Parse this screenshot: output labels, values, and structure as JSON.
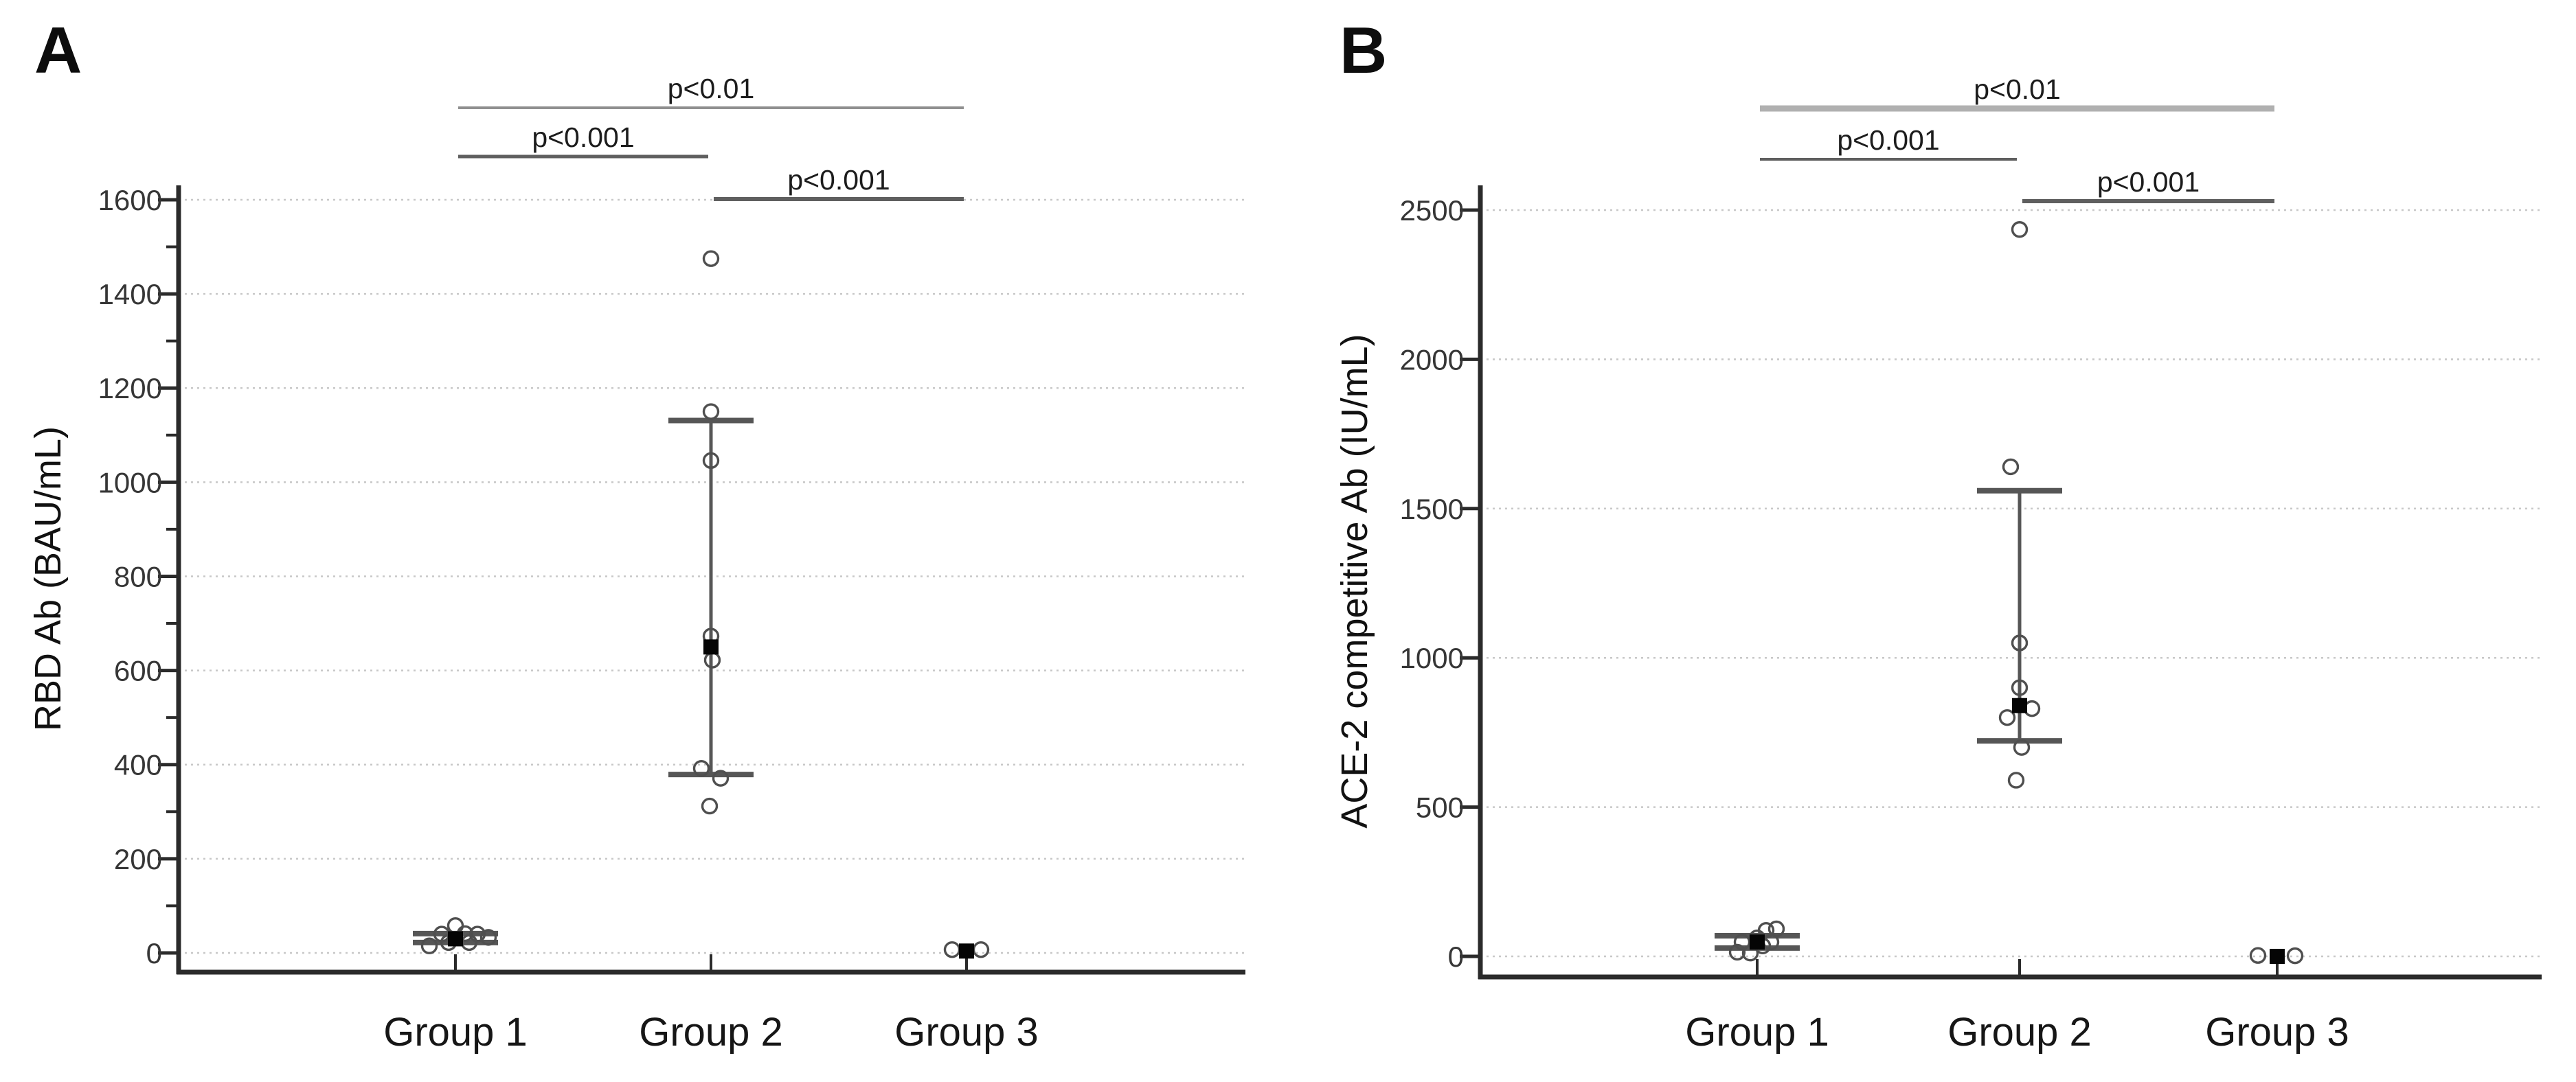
{
  "figure": {
    "background": "#ffffff",
    "text_color": "#1a1a1a",
    "axis_color": "#2b2b2b",
    "grid_color": "#c8c8c8",
    "errorbar_color": "#565656",
    "point_stroke_color": "#4f4f4f",
    "mean_square_color": "#050505"
  },
  "chart_data": [
    {
      "type": "scatter",
      "panel_label": "A",
      "title": "",
      "xlabel": "",
      "ylabel": "RBD Ab (BAU/mL)",
      "ylim": [
        0,
        1600
      ],
      "yticks": [
        0,
        200,
        400,
        600,
        800,
        1000,
        1200,
        1400,
        1600
      ],
      "ytick_minor_interval": 100,
      "grid": "horizontal dotted at major ticks",
      "legend": "none",
      "categories": [
        "Group 1",
        "Group 2",
        "Group 3"
      ],
      "marker_legend": "open circles = individual subjects, filled square = mean, whiskers = error bars",
      "groups": [
        {
          "label": "Group 1",
          "mean": 30,
          "whisker_low": 22,
          "whisker_high": 41,
          "points": [
            {
              "dx": 0,
              "v": 58
            },
            {
              "dx": -38,
              "v": 15
            },
            {
              "dx": -20,
              "v": 40
            },
            {
              "dx": 14,
              "v": 41
            },
            {
              "dx": 32,
              "v": 40
            },
            {
              "dx": 48,
              "v": 33
            },
            {
              "dx": -10,
              "v": 22
            },
            {
              "dx": 20,
              "v": 22
            }
          ]
        },
        {
          "label": "Group 2",
          "mean": 650,
          "whisker_low": 379,
          "whisker_high": 1131,
          "points": [
            {
              "dx": 0,
              "v": 1475
            },
            {
              "dx": 0,
              "v": 1150
            },
            {
              "dx": 0,
              "v": 1046
            },
            {
              "dx": 0,
              "v": 673
            },
            {
              "dx": 2,
              "v": 622
            },
            {
              "dx": -14,
              "v": 392
            },
            {
              "dx": 14,
              "v": 371
            },
            {
              "dx": -2,
              "v": 312
            }
          ]
        },
        {
          "label": "Group 3",
          "mean": 4,
          "whisker_low": null,
          "whisker_high": null,
          "points": [
            {
              "dx": -21,
              "v": 7
            },
            {
              "dx": 21,
              "v": 7
            }
          ]
        }
      ],
      "significance": [
        {
          "label": "p<0.01",
          "between": [
            0,
            2
          ],
          "color": "#8f8f8f",
          "thickness": 4
        },
        {
          "label": "p<0.001",
          "between": [
            0,
            1
          ],
          "color": "#5f5f5f",
          "thickness": 5
        },
        {
          "label": "p<0.001",
          "between": [
            1,
            2
          ],
          "color": "#5f5f5f",
          "thickness": 6
        }
      ]
    },
    {
      "type": "scatter",
      "panel_label": "B",
      "title": "",
      "xlabel": "",
      "ylabel": "ACE-2 competitive Ab (IU/mL)",
      "ylim": [
        0,
        2500
      ],
      "yticks": [
        0,
        500,
        1000,
        1500,
        2000,
        2500
      ],
      "ytick_minor_interval": null,
      "grid": "horizontal dotted at major ticks",
      "legend": "none",
      "categories": [
        "Group 1",
        "Group 2",
        "Group 3"
      ],
      "marker_legend": "open circles = individual subjects, filled square = mean, whiskers = error bars",
      "groups": [
        {
          "label": "Group 1",
          "mean": 48,
          "whisker_low": 28,
          "whisker_high": 69,
          "points": [
            {
              "dx": 28,
              "v": 92
            },
            {
              "dx": 13,
              "v": 87
            },
            {
              "dx": -22,
              "v": 48
            },
            {
              "dx": 20,
              "v": 48
            },
            {
              "dx": -29,
              "v": 14
            },
            {
              "dx": -10,
              "v": 11
            },
            {
              "dx": 0,
              "v": 62
            },
            {
              "dx": 8,
              "v": 35
            }
          ]
        },
        {
          "label": "Group 2",
          "mean": 840,
          "whisker_low": 722,
          "whisker_high": 1560,
          "points": [
            {
              "dx": 0,
              "v": 2435
            },
            {
              "dx": -13,
              "v": 1640
            },
            {
              "dx": 0,
              "v": 1050
            },
            {
              "dx": 0,
              "v": 900
            },
            {
              "dx": 18,
              "v": 830
            },
            {
              "dx": -18,
              "v": 800
            },
            {
              "dx": 3,
              "v": 700
            },
            {
              "dx": -5,
              "v": 590
            }
          ]
        },
        {
          "label": "Group 3",
          "mean": 0,
          "whisker_low": null,
          "whisker_high": null,
          "points": [
            {
              "dx": -28,
              "v": 3
            },
            {
              "dx": 26,
              "v": 2
            }
          ]
        }
      ],
      "significance": [
        {
          "label": "p<0.01",
          "between": [
            0,
            2
          ],
          "color": "#b0b0b0",
          "thickness": 9
        },
        {
          "label": "p<0.001",
          "between": [
            0,
            1
          ],
          "color": "#5f5f5f",
          "thickness": 4
        },
        {
          "label": "p<0.001",
          "between": [
            1,
            2
          ],
          "color": "#5f5f5f",
          "thickness": 6
        }
      ]
    }
  ]
}
